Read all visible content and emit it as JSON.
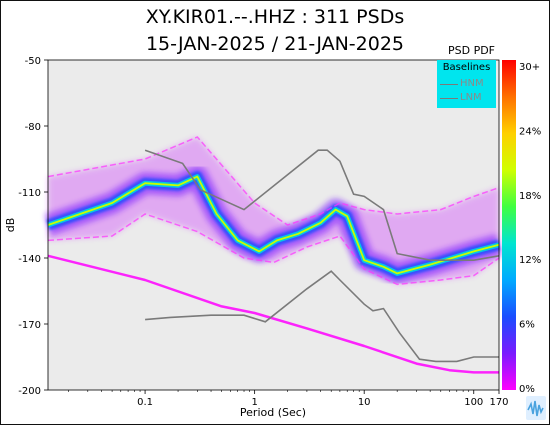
{
  "chart_data": {
    "type": "heatmap",
    "title": "XY.KIR01.--.HHZ : 311 PSDs",
    "subtitle": "15-JAN-2025 / 21-JAN-2025",
    "xlabel": "Period (Sec)",
    "ylabel": "dB",
    "x_scale": "log",
    "xlim": [
      0.013,
      170
    ],
    "ylim": [
      -200,
      -50
    ],
    "x_ticks": [
      {
        "value": 0.1,
        "label": "0.1"
      },
      {
        "value": 1,
        "label": "1"
      },
      {
        "value": 10,
        "label": "10"
      },
      {
        "value": 100,
        "label": "100"
      },
      {
        "value": 170,
        "label": "170"
      }
    ],
    "y_ticks": [
      {
        "value": -50,
        "label": "-50"
      },
      {
        "value": -80,
        "label": "-80"
      },
      {
        "value": -110,
        "label": "-110"
      },
      {
        "value": -140,
        "label": "-140"
      },
      {
        "value": -170,
        "label": "-170"
      },
      {
        "value": -200,
        "label": "-200"
      }
    ],
    "colorbar": {
      "title": "PSD PDF",
      "ticks": [
        "30+",
        "24%",
        "18%",
        "12%",
        "6%",
        "0%"
      ],
      "colors": [
        "#ff00ff",
        "#7a1aff",
        "#1a4dff",
        "#00aaff",
        "#00e5d0",
        "#40ff40",
        "#d0ff00",
        "#ffd000",
        "#ff7000",
        "#ff0000"
      ]
    },
    "legend": {
      "title": "Baselines",
      "entries": [
        "HNM",
        "LNM"
      ],
      "placement": "top-right"
    },
    "series": [
      {
        "name": "HNM",
        "color": "#7a7a7a",
        "x": [
          0.1,
          0.22,
          0.32,
          0.8,
          3.8,
          4.6,
          6.0,
          8.0,
          10.0,
          15.0,
          20.0,
          40.0,
          100.0,
          170.0
        ],
        "y": [
          -91,
          -97,
          -109,
          -118,
          -91,
          -91,
          -96,
          -111,
          -112,
          -118,
          -138,
          -141,
          -141,
          -139
        ]
      },
      {
        "name": "LNM",
        "color": "#7a7a7a",
        "x": [
          0.1,
          0.17,
          0.4,
          0.8,
          1.25,
          3.0,
          5.0,
          6.0,
          10.0,
          12.0,
          15.0,
          21.0,
          32.0,
          45.0,
          70.0,
          100.0,
          170.0
        ],
        "y": [
          -168,
          -167,
          -166,
          -166,
          -169,
          -154,
          -146,
          -150,
          -161,
          -164,
          -163,
          -174,
          -186,
          -187,
          -187,
          -185,
          -185
        ]
      }
    ],
    "pdf_bands": [
      {
        "name": "dense-core",
        "x": [
          0.013,
          0.05,
          0.1,
          0.2,
          0.3,
          0.45,
          0.7,
          1.1,
          1.6,
          2.5,
          4.0,
          5.5,
          7.0,
          10.0,
          15.0,
          20.0,
          40.0,
          100.0,
          170.0
        ],
        "y": [
          -125,
          -115,
          -106,
          -107,
          -103,
          -120,
          -132,
          -137,
          -132,
          -129,
          -124,
          -118,
          -121,
          -141,
          -144,
          -147,
          -143,
          -137,
          -134
        ]
      },
      {
        "name": "upper-spread",
        "x": [
          0.013,
          0.1,
          0.3,
          1.0,
          2.0,
          4.0,
          6.0,
          10.0,
          20.0,
          50.0,
          100.0,
          170.0
        ],
        "y": [
          -103,
          -95,
          -85,
          -115,
          -125,
          -120,
          -115,
          -118,
          -120,
          -118,
          -112,
          -108
        ]
      },
      {
        "name": "lower-spread",
        "x": [
          0.013,
          0.05,
          0.1,
          0.3,
          0.8,
          1.5,
          3.0,
          6.0,
          10.0,
          20.0,
          50.0,
          100.0,
          170.0
        ],
        "y": [
          -132,
          -130,
          -120,
          -128,
          -140,
          -142,
          -135,
          -130,
          -145,
          -152,
          -150,
          -148,
          -140
        ]
      },
      {
        "name": "noise-floor",
        "x": [
          0.013,
          0.1,
          0.5,
          1.0,
          3.0,
          10.0,
          30.0,
          60.0,
          100.0,
          170.0
        ],
        "y": [
          -139,
          -150,
          -162,
          -165,
          -172,
          -180,
          -188,
          -191,
          -192,
          -192
        ]
      }
    ]
  }
}
